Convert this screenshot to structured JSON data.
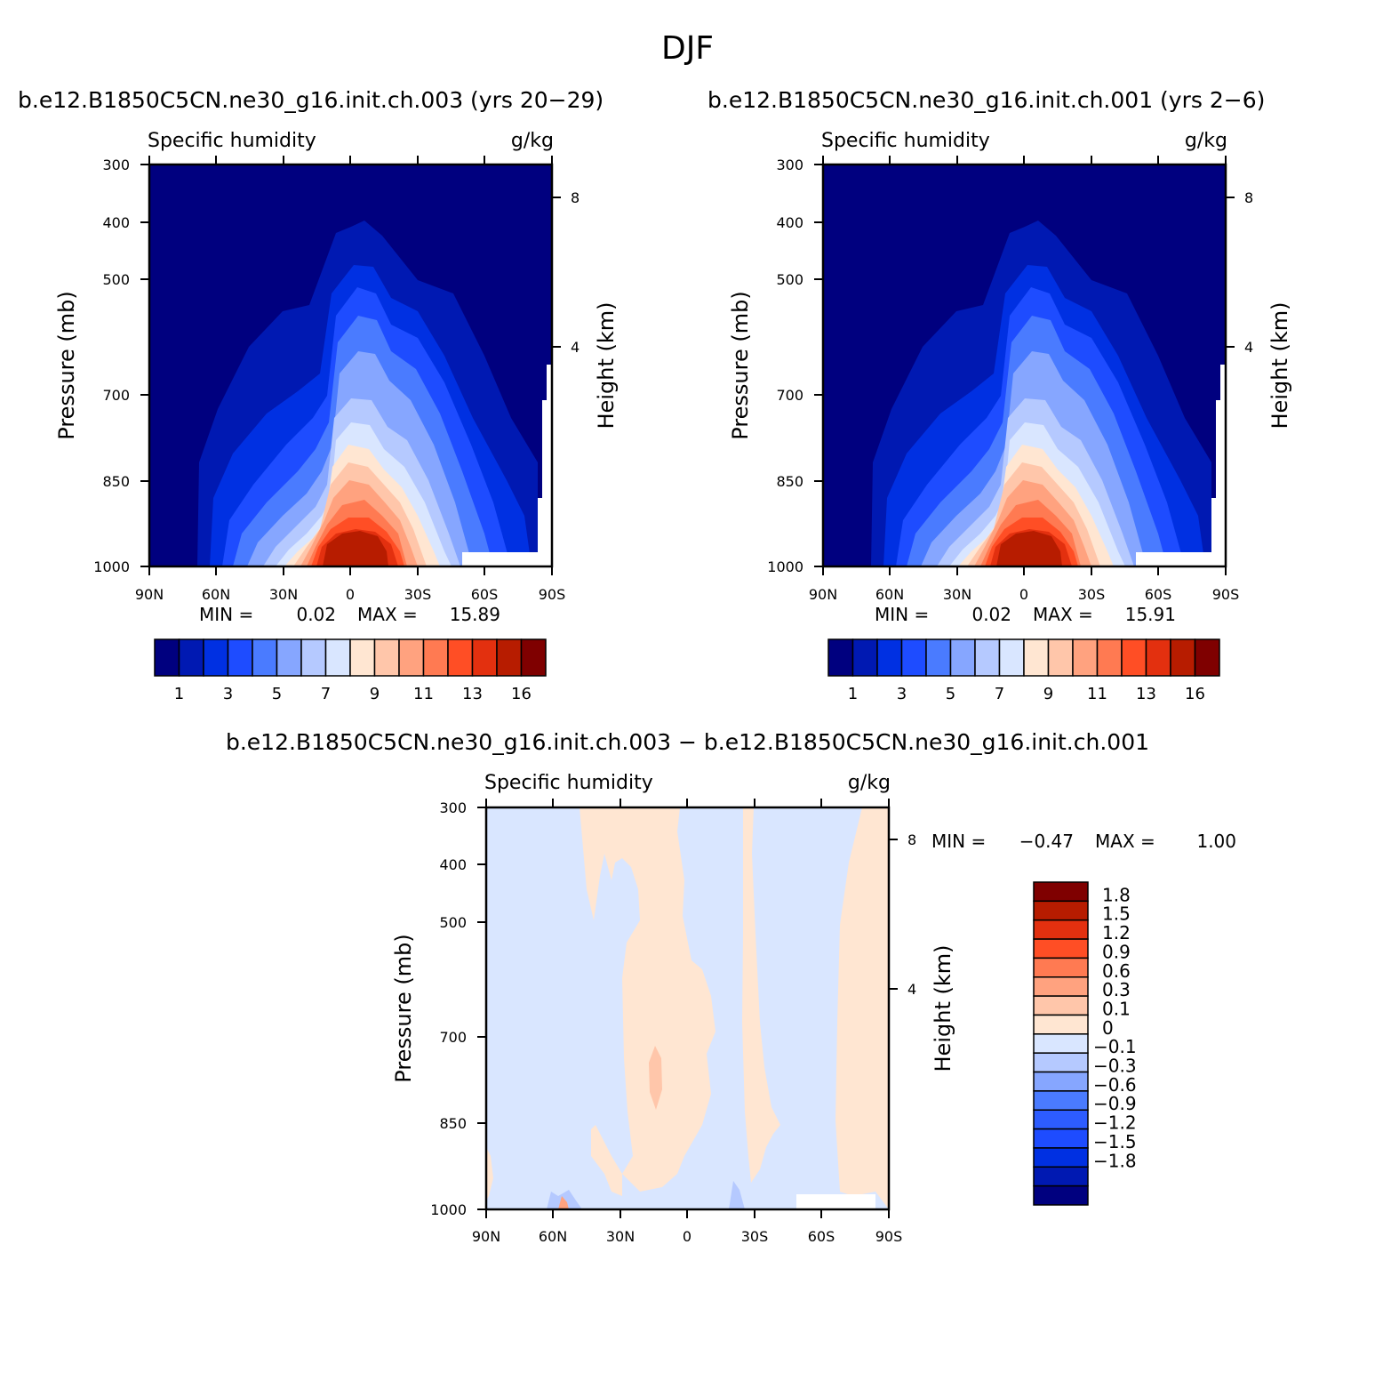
{
  "figure": {
    "title": "DJF"
  },
  "panels": [
    {
      "case_title": "b.e12.B1850C5CN.ne30_g16.init.ch.003 (yrs 20−29)",
      "var_label": "Specific humidity",
      "units": "g/kg",
      "min_label": "MIN =",
      "min_value": "0.02",
      "max_label": "MAX =",
      "max_value": "15.89"
    },
    {
      "case_title": "b.e12.B1850C5CN.ne30_g16.init.ch.001 (yrs 2−6)",
      "var_label": "Specific humidity",
      "units": "g/kg",
      "min_label": "MIN =",
      "min_value": "0.02",
      "max_label": "MAX =",
      "max_value": "15.91"
    },
    {
      "case_title": "b.e12.B1850C5CN.ne30_g16.init.ch.003 − b.e12.B1850C5CN.ne30_g16.init.ch.001",
      "var_label": "Specific humidity",
      "units": "g/kg",
      "min_label": "MIN =",
      "min_value": "−0.47",
      "max_label": "MAX =",
      "max_value": "1.00"
    }
  ],
  "axes": {
    "y_left_label": "Pressure (mb)",
    "y_right_label": "Height (km)",
    "y_ticks": [
      "300",
      "400",
      "500",
      "700",
      "850",
      "1000"
    ],
    "y_right_ticks": [
      "8",
      "4"
    ],
    "x_ticks": [
      "90N",
      "60N",
      "30N",
      "0",
      "30S",
      "60S",
      "90S"
    ]
  },
  "chart_data": [
    {
      "type": "heatmap",
      "title": "Specific humidity",
      "units": "g/kg",
      "x": [
        -90,
        -60,
        -30,
        0,
        30,
        60,
        90
      ],
      "x_tick_labels": [
        "90N",
        "60N",
        "30N",
        "0",
        "30S",
        "60S",
        "90S"
      ],
      "y_pressure": [
        300,
        400,
        500,
        700,
        850,
        1000
      ],
      "y_pressure_scale": "log",
      "ylabel": "Pressure (mb)",
      "ylabel_right": "Height (km)",
      "min": 0.02,
      "max": 15.89,
      "contour_levels": [
        1,
        2,
        3,
        4,
        5,
        6,
        7,
        8,
        9,
        10,
        11,
        12,
        13,
        14,
        16
      ],
      "colorbar_labels": [
        "1",
        "3",
        "5",
        "7",
        "9",
        "11",
        "13",
        "16"
      ],
      "colors": [
        "#00007f",
        "#0019b2",
        "#0030e2",
        "#1e4cff",
        "#4a7bff",
        "#86a6ff",
        "#b5c9ff",
        "#d9e6ff",
        "#ffe6d2",
        "#ffc6aa",
        "#ffa27f",
        "#ff7a52",
        "#ff4e25",
        "#e3300f",
        "#b71c00",
        "#7f0000"
      ]
    },
    {
      "type": "heatmap",
      "title": "Specific humidity",
      "units": "g/kg",
      "x": [
        -90,
        -60,
        -30,
        0,
        30,
        60,
        90
      ],
      "x_tick_labels": [
        "90N",
        "60N",
        "30N",
        "0",
        "30S",
        "60S",
        "90S"
      ],
      "y_pressure": [
        300,
        400,
        500,
        700,
        850,
        1000
      ],
      "y_pressure_scale": "log",
      "ylabel": "Pressure (mb)",
      "ylabel_right": "Height (km)",
      "min": 0.02,
      "max": 15.91,
      "contour_levels": [
        1,
        2,
        3,
        4,
        5,
        6,
        7,
        8,
        9,
        10,
        11,
        12,
        13,
        14,
        16
      ],
      "colorbar_labels": [
        "1",
        "3",
        "5",
        "7",
        "9",
        "11",
        "13",
        "16"
      ],
      "colors": [
        "#00007f",
        "#0019b2",
        "#0030e2",
        "#1e4cff",
        "#4a7bff",
        "#86a6ff",
        "#b5c9ff",
        "#d9e6ff",
        "#ffe6d2",
        "#ffc6aa",
        "#ffa27f",
        "#ff7a52",
        "#ff4e25",
        "#e3300f",
        "#b71c00",
        "#7f0000"
      ]
    },
    {
      "type": "heatmap",
      "title": "Specific humidity",
      "units": "g/kg",
      "x": [
        -90,
        -60,
        -30,
        0,
        30,
        60,
        90
      ],
      "x_tick_labels": [
        "90N",
        "60N",
        "30N",
        "0",
        "30S",
        "60S",
        "90S"
      ],
      "y_pressure": [
        300,
        400,
        500,
        700,
        850,
        1000
      ],
      "y_pressure_scale": "log",
      "ylabel": "Pressure (mb)",
      "ylabel_right": "Height (km)",
      "min": -0.47,
      "max": 1.0,
      "contour_levels": [
        -1.8,
        -1.5,
        -1.2,
        -0.9,
        -0.6,
        -0.3,
        -0.1,
        0,
        0.1,
        0.3,
        0.6,
        0.9,
        1.2,
        1.5,
        1.8
      ],
      "colorbar_labels": [
        "1.8",
        "1.5",
        "1.2",
        "0.9",
        "0.6",
        "0.3",
        "0.1",
        "0",
        "−0.1",
        "−0.3",
        "−0.6",
        "−0.9",
        "−1.2",
        "−1.5",
        "−1.8"
      ],
      "colors": [
        "#00007f",
        "#0019b2",
        "#0030e2",
        "#1e4cff",
        "#2d5cff",
        "#4a7bff",
        "#86a6ff",
        "#b5c9ff",
        "#d9e6ff",
        "#ffe6d2",
        "#ffc6aa",
        "#ffa27f",
        "#ff7a52",
        "#ff4e25",
        "#e3300f",
        "#b71c00",
        "#7f0000"
      ]
    }
  ]
}
